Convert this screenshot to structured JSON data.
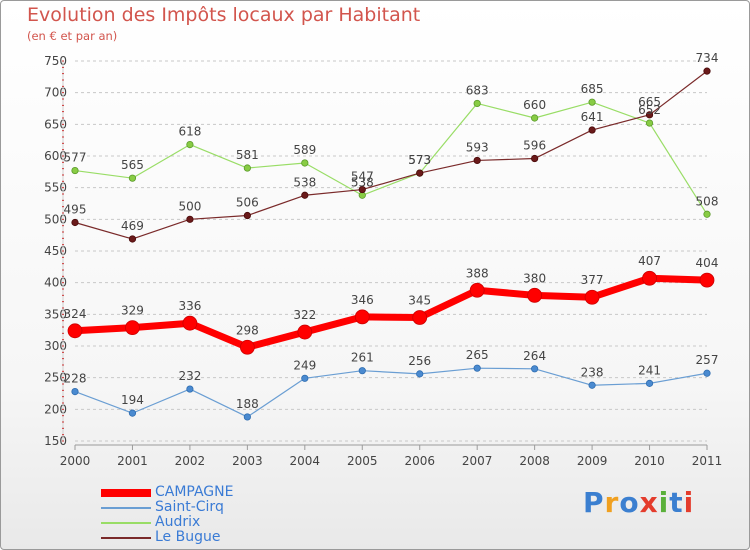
{
  "chart_title": "Evolution des Impôts locaux par Habitant",
  "chart_subtitle": "(en € et par an)",
  "logo_text": "Proxiti",
  "chart_data": {
    "type": "line",
    "title": "Evolution des Impôts locaux par Habitant",
    "subtitle": "(en € et par an)",
    "xlabel": "",
    "ylabel": "",
    "categories": [
      "2000",
      "2001",
      "2002",
      "2003",
      "2004",
      "2005",
      "2006",
      "2007",
      "2008",
      "2009",
      "2010",
      "2011"
    ],
    "ylim": [
      150,
      750
    ],
    "yticks": [
      150,
      200,
      250,
      300,
      350,
      400,
      450,
      500,
      550,
      600,
      650,
      700,
      750
    ],
    "grid": "horizontal dashed",
    "legend_position": "bottom-left",
    "series": [
      {
        "name": "CAMPAGNE",
        "color": "#ff0000",
        "values": [
          324,
          329,
          336,
          298,
          322,
          346,
          345,
          388,
          380,
          377,
          407,
          404
        ]
      },
      {
        "name": "Saint-Cirq",
        "color": "#6a9ed3",
        "values": [
          228,
          194,
          232,
          188,
          249,
          261,
          256,
          265,
          264,
          238,
          241,
          257
        ]
      },
      {
        "name": "Audrix",
        "color": "#99dd66",
        "values": [
          577,
          565,
          618,
          581,
          589,
          538,
          573,
          683,
          660,
          685,
          652,
          508
        ]
      },
      {
        "name": "Le Bugue",
        "color": "#7a2a2a",
        "values": [
          495,
          469,
          500,
          506,
          538,
          547,
          573,
          593,
          596,
          641,
          665,
          734
        ]
      }
    ]
  }
}
